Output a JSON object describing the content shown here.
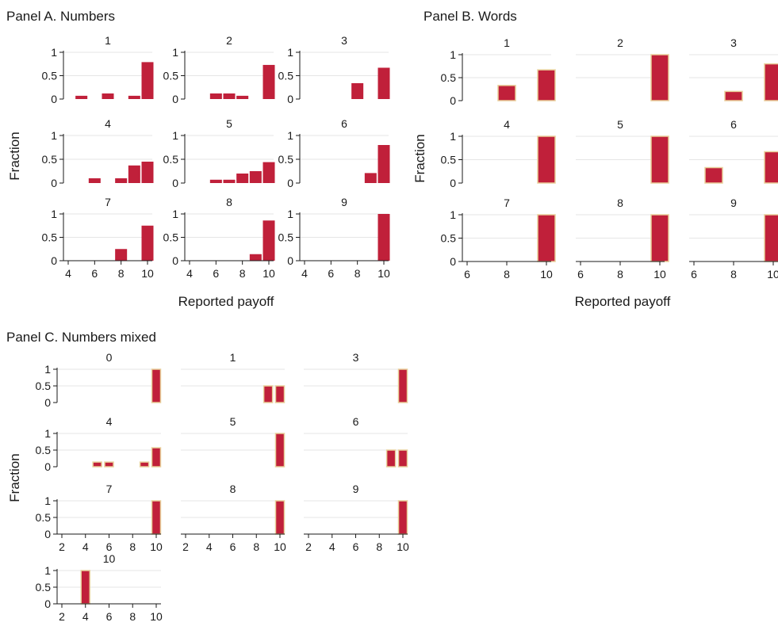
{
  "chart_data": [
    {
      "type": "bar",
      "title": "Panel A. Numbers",
      "xlabel": "Reported payoff",
      "ylabel": "Fraction",
      "xlim": [
        4,
        10
      ],
      "ylim": [
        0,
        1
      ],
      "xticks": [
        "4",
        "6",
        "8",
        "10"
      ],
      "yticks": [
        "0",
        "0.5",
        "1"
      ],
      "bar_style": "plain",
      "subplots": [
        {
          "label": "1",
          "bars": [
            {
              "x": 5,
              "y": 0.07
            },
            {
              "x": 7,
              "y": 0.12
            },
            {
              "x": 9,
              "y": 0.07
            },
            {
              "x": 10,
              "y": 0.79
            }
          ]
        },
        {
          "label": "2",
          "bars": [
            {
              "x": 6,
              "y": 0.12
            },
            {
              "x": 7,
              "y": 0.12
            },
            {
              "x": 8,
              "y": 0.07
            },
            {
              "x": 10,
              "y": 0.73
            }
          ]
        },
        {
          "label": "3",
          "bars": [
            {
              "x": 8,
              "y": 0.34
            },
            {
              "x": 10,
              "y": 0.67
            }
          ]
        },
        {
          "label": "4",
          "bars": [
            {
              "x": 6,
              "y": 0.1
            },
            {
              "x": 8,
              "y": 0.1
            },
            {
              "x": 9,
              "y": 0.37
            },
            {
              "x": 10,
              "y": 0.45
            }
          ]
        },
        {
          "label": "5",
          "bars": [
            {
              "x": 6,
              "y": 0.07
            },
            {
              "x": 7,
              "y": 0.07
            },
            {
              "x": 8,
              "y": 0.2
            },
            {
              "x": 9,
              "y": 0.25
            },
            {
              "x": 10,
              "y": 0.44
            }
          ]
        },
        {
          "label": "6",
          "bars": [
            {
              "x": 9,
              "y": 0.21
            },
            {
              "x": 10,
              "y": 0.8
            }
          ]
        },
        {
          "label": "7",
          "bars": [
            {
              "x": 8,
              "y": 0.25
            },
            {
              "x": 10,
              "y": 0.75
            }
          ]
        },
        {
          "label": "8",
          "bars": [
            {
              "x": 9,
              "y": 0.14
            },
            {
              "x": 10,
              "y": 0.86
            }
          ]
        },
        {
          "label": "9",
          "bars": [
            {
              "x": 10,
              "y": 1.0
            }
          ]
        }
      ]
    },
    {
      "type": "bar",
      "title": "Panel B. Words",
      "xlabel": "Reported payoff",
      "ylabel": "Fraction",
      "xlim": [
        6,
        10
      ],
      "ylim": [
        0,
        1
      ],
      "xticks": [
        "6",
        "8",
        "10"
      ],
      "yticks": [
        "0",
        "0.5",
        "1"
      ],
      "bar_style": "outlined",
      "subplots": [
        {
          "label": "1",
          "bars": [
            {
              "x": 8,
              "y": 0.33
            },
            {
              "x": 10,
              "y": 0.67
            }
          ]
        },
        {
          "label": "2",
          "bars": [
            {
              "x": 10,
              "y": 1.0
            }
          ]
        },
        {
          "label": "3",
          "bars": [
            {
              "x": 8,
              "y": 0.2
            },
            {
              "x": 10,
              "y": 0.8
            }
          ]
        },
        {
          "label": "4",
          "bars": [
            {
              "x": 10,
              "y": 1.0
            }
          ]
        },
        {
          "label": "5",
          "bars": [
            {
              "x": 10,
              "y": 1.0
            }
          ]
        },
        {
          "label": "6",
          "bars": [
            {
              "x": 7,
              "y": 0.33
            },
            {
              "x": 10,
              "y": 0.67
            }
          ]
        },
        {
          "label": "7",
          "bars": [
            {
              "x": 10,
              "y": 1.0
            }
          ]
        },
        {
          "label": "8",
          "bars": [
            {
              "x": 10,
              "y": 1.0
            }
          ]
        },
        {
          "label": "9",
          "bars": [
            {
              "x": 10,
              "y": 1.0
            }
          ]
        }
      ]
    },
    {
      "type": "bar",
      "title": "Panel C. Numbers mixed",
      "xlabel": "",
      "ylabel": "Fraction",
      "xlim": [
        2,
        10
      ],
      "ylim": [
        0,
        1
      ],
      "xticks": [
        "2",
        "4",
        "6",
        "8",
        "10"
      ],
      "yticks": [
        "0",
        "0.5",
        "1"
      ],
      "bar_style": "outlined",
      "subplots": [
        {
          "label": "0",
          "bars": [
            {
              "x": 10,
              "y": 1.0
            }
          ]
        },
        {
          "label": "1",
          "bars": [
            {
              "x": 9,
              "y": 0.5
            },
            {
              "x": 10,
              "y": 0.5
            }
          ]
        },
        {
          "label": "3",
          "bars": [
            {
              "x": 10,
              "y": 1.0
            }
          ]
        },
        {
          "label": "4",
          "bars": [
            {
              "x": 5,
              "y": 0.14
            },
            {
              "x": 6,
              "y": 0.14
            },
            {
              "x": 9,
              "y": 0.14
            },
            {
              "x": 10,
              "y": 0.57
            }
          ]
        },
        {
          "label": "5",
          "bars": [
            {
              "x": 10,
              "y": 1.0
            }
          ]
        },
        {
          "label": "6",
          "bars": [
            {
              "x": 9,
              "y": 0.5
            },
            {
              "x": 10,
              "y": 0.5
            }
          ]
        },
        {
          "label": "7",
          "bars": [
            {
              "x": 10,
              "y": 1.0
            }
          ]
        },
        {
          "label": "8",
          "bars": [
            {
              "x": 10,
              "y": 1.0
            }
          ]
        },
        {
          "label": "9",
          "bars": [
            {
              "x": 10,
              "y": 1.0
            }
          ]
        },
        {
          "label": "10",
          "bars": [
            {
              "x": 4,
              "y": 1.0
            }
          ]
        }
      ]
    }
  ],
  "colors": {
    "bar": "#c0203a",
    "bar_outline": "#e8cf9a",
    "axis": "#1a1a1a",
    "grid": "#e6e6e6"
  }
}
